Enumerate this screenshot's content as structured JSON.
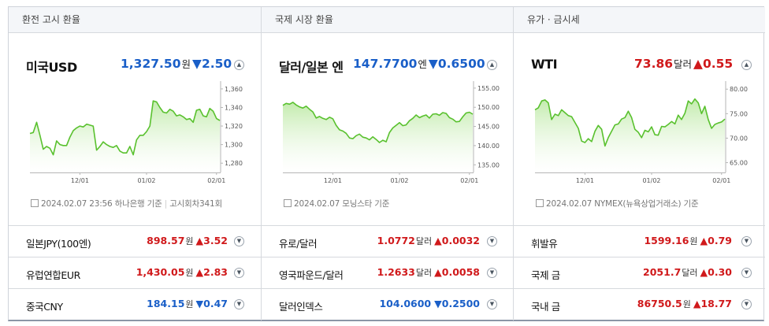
{
  "columns": [
    {
      "header": "환전 고시 환율",
      "main": {
        "title": "미국USD",
        "value": "1,327.50",
        "unit": "원",
        "direction": "down",
        "arrow": "▼",
        "change": "2.50",
        "source_text": "2024.02.07 23:56 하나은행 기준",
        "source_extra": "고시회차341회"
      },
      "chart": {
        "yticks": [
          "1,360",
          "1,340",
          "1,320",
          "1,300",
          "1,280"
        ],
        "ylim": [
          1270,
          1365
        ],
        "xticks": [
          {
            "label": "12/01",
            "i": 15
          },
          {
            "label": "01/02",
            "i": 35
          },
          {
            "label": "02/01",
            "i": 56
          }
        ],
        "values": [
          1312,
          1313,
          1324,
          1310,
          1295,
          1298,
          1296,
          1289,
          1304,
          1300,
          1299,
          1299,
          1308,
          1315,
          1318,
          1320,
          1319,
          1322,
          1321,
          1320,
          1294,
          1298,
          1303,
          1300,
          1298,
          1297,
          1299,
          1293,
          1291,
          1291,
          1298,
          1289,
          1305,
          1310,
          1310,
          1314,
          1320,
          1347,
          1346,
          1340,
          1335,
          1334,
          1338,
          1336,
          1331,
          1332,
          1330,
          1327,
          1328,
          1324,
          1337,
          1338,
          1331,
          1330,
          1339,
          1336,
          1328,
          1326
        ]
      },
      "items": [
        {
          "name": "일본JPY(100엔)",
          "value": "898.57",
          "unit": "원",
          "direction": "up",
          "arrow": "▲",
          "change": "3.52"
        },
        {
          "name": "유럽연합EUR",
          "value": "1,430.05",
          "unit": "원",
          "direction": "up",
          "arrow": "▲",
          "change": "2.83"
        },
        {
          "name": "중국CNY",
          "value": "184.15",
          "unit": "원",
          "direction": "down",
          "arrow": "▼",
          "change": "0.47"
        }
      ]
    },
    {
      "header": "국제 시장 환율",
      "main": {
        "title": "달러/일본 엔",
        "value": "147.7700",
        "unit": "엔",
        "direction": "down",
        "arrow": "▼",
        "change": "0.6500",
        "source_text": "2024.02.07 모닝스타 기준",
        "source_extra": ""
      },
      "chart": {
        "yticks": [
          "155.00",
          "150.00",
          "145.00",
          "140.00",
          "135.00"
        ],
        "ylim": [
          133,
          156
        ],
        "xticks": [
          {
            "label": "12/01",
            "i": 15
          },
          {
            "label": "01/02",
            "i": 35
          },
          {
            "label": "02/01",
            "i": 56
          }
        ],
        "values": [
          150.5,
          151.0,
          150.8,
          151.3,
          150.6,
          150.1,
          149.8,
          150.3,
          149.5,
          148.8,
          147.2,
          147.6,
          147.1,
          146.8,
          147.4,
          147.0,
          145.3,
          144.1,
          143.8,
          143.2,
          142.0,
          141.8,
          142.6,
          143.0,
          142.2,
          142.0,
          141.5,
          142.3,
          141.6,
          140.8,
          141.4,
          141.0,
          143.4,
          144.6,
          145.3,
          146.0,
          145.2,
          145.4,
          146.5,
          147.1,
          148.0,
          147.3,
          147.7,
          148.0,
          147.2,
          148.2,
          148.3,
          147.9,
          148.6,
          148.4,
          147.3,
          146.9,
          146.2,
          146.3,
          147.5,
          148.5,
          148.7,
          148.2
        ]
      },
      "items": [
        {
          "name": "유로/달러",
          "value": "1.0772",
          "unit": "달러",
          "direction": "up",
          "arrow": "▲",
          "change": "0.0032"
        },
        {
          "name": "영국파운드/달러",
          "value": "1.2633",
          "unit": "달러",
          "direction": "up",
          "arrow": "▲",
          "change": "0.0058"
        },
        {
          "name": "달러인덱스",
          "value": "104.0600",
          "unit": "",
          "direction": "down",
          "arrow": "▼",
          "change": "0.2500"
        }
      ]
    },
    {
      "header": "유가 · 금시세",
      "main": {
        "title": "WTI",
        "value": "73.86",
        "unit": "달러",
        "direction": "up",
        "arrow": "▲",
        "change": "0.55",
        "source_text": "2024.02.07 NYMEX(뉴욕상업거래소) 기준",
        "source_extra": ""
      },
      "chart": {
        "yticks": [
          "80.00",
          "75.00",
          "70.00",
          "65.00"
        ],
        "ylim": [
          63,
          81
        ],
        "xticks": [
          {
            "label": "12/01",
            "i": 15
          },
          {
            "label": "01/02",
            "i": 35
          },
          {
            "label": "02/01",
            "i": 56
          }
        ],
        "values": [
          75.8,
          76.2,
          77.6,
          77.8,
          77.2,
          73.8,
          74.9,
          74.6,
          75.8,
          75.2,
          74.6,
          74.4,
          73.2,
          72.0,
          69.4,
          69.1,
          69.9,
          69.3,
          71.4,
          72.6,
          71.8,
          68.4,
          70.1,
          71.4,
          72.7,
          72.9,
          73.9,
          74.2,
          75.5,
          74.2,
          71.8,
          71.2,
          70.1,
          71.6,
          71.3,
          72.3,
          70.7,
          70.6,
          72.4,
          72.3,
          72.8,
          73.4,
          72.9,
          74.7,
          73.8,
          75.1,
          77.6,
          77.0,
          78.0,
          77.2,
          75.0,
          76.5,
          73.8,
          72.0,
          72.8,
          73.1,
          73.3,
          73.9
        ]
      },
      "items": [
        {
          "name": "휘발유",
          "value": "1599.16",
          "unit": "원",
          "direction": "up",
          "arrow": "▲",
          "change": "0.79"
        },
        {
          "name": "국제 금",
          "value": "2051.7",
          "unit": "달러",
          "direction": "up",
          "arrow": "▲",
          "change": "0.30"
        },
        {
          "name": "국내 금",
          "value": "86750.5",
          "unit": "원",
          "direction": "up",
          "arrow": "▲",
          "change": "18.77"
        }
      ]
    }
  ],
  "icons": {
    "expand": "chevron-up-icon",
    "item_expand": "chevron-down-icon",
    "source": "document-icon"
  },
  "colors": {
    "down": "#1a5fc8",
    "up": "#d0191b",
    "line": "#59c12e",
    "fill": "#bfeaa8"
  }
}
